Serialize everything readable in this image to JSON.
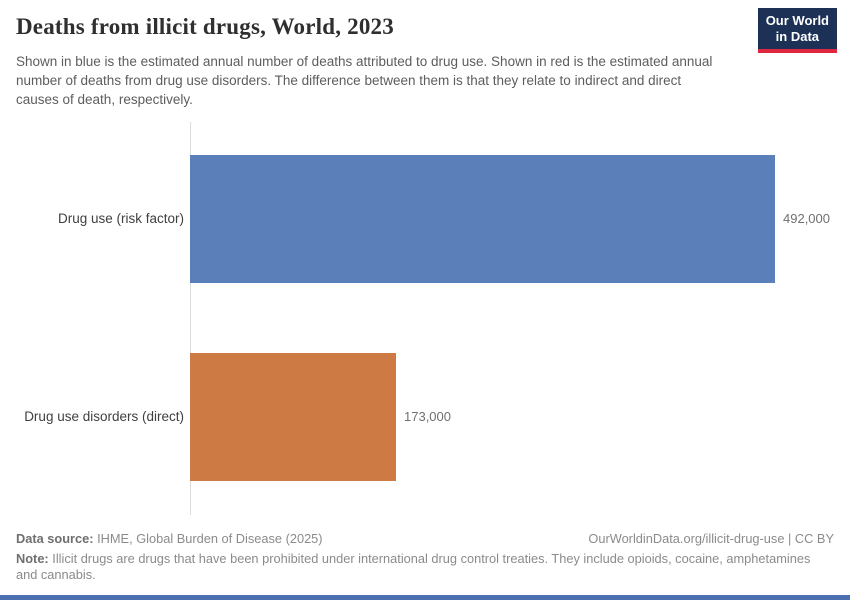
{
  "header": {
    "title": "Deaths from illicit drugs, World, 2023",
    "subtitle": "Shown in blue is the estimated annual number of deaths attributed to drug use. Shown in red is the estimated annual number of deaths from drug use disorders. The difference between them is that they relate to indirect and direct causes of death, respectively.",
    "logo_line1": "Our World",
    "logo_line2": "in Data"
  },
  "chart_data": {
    "type": "bar",
    "orientation": "horizontal",
    "title": "Deaths from illicit drugs, World, 2023",
    "categories": [
      "Drug use (risk factor)",
      "Drug use disorders (direct)"
    ],
    "values": [
      492000,
      173000
    ],
    "value_labels": [
      "492,000",
      "173,000"
    ],
    "colors": [
      "#5b7fb9",
      "#cd7a45"
    ],
    "xlim": [
      0,
      492000
    ],
    "grid": false,
    "legend": "none"
  },
  "footer": {
    "datasource_label": "Data source:",
    "datasource_value": " IHME, Global Burden of Disease (2025)",
    "attribution": "OurWorldinData.org/illicit-drug-use | CC BY",
    "note_label": "Note:",
    "note_value": " Illicit drugs are drugs that have been prohibited under international drug control treaties. They include opioids, cocaine, amphetamines and cannabis."
  },
  "brand": {
    "logo_navy": "#1d3156",
    "logo_red": "#e02742",
    "bottom_bar_blue": "#4c6fb1"
  }
}
